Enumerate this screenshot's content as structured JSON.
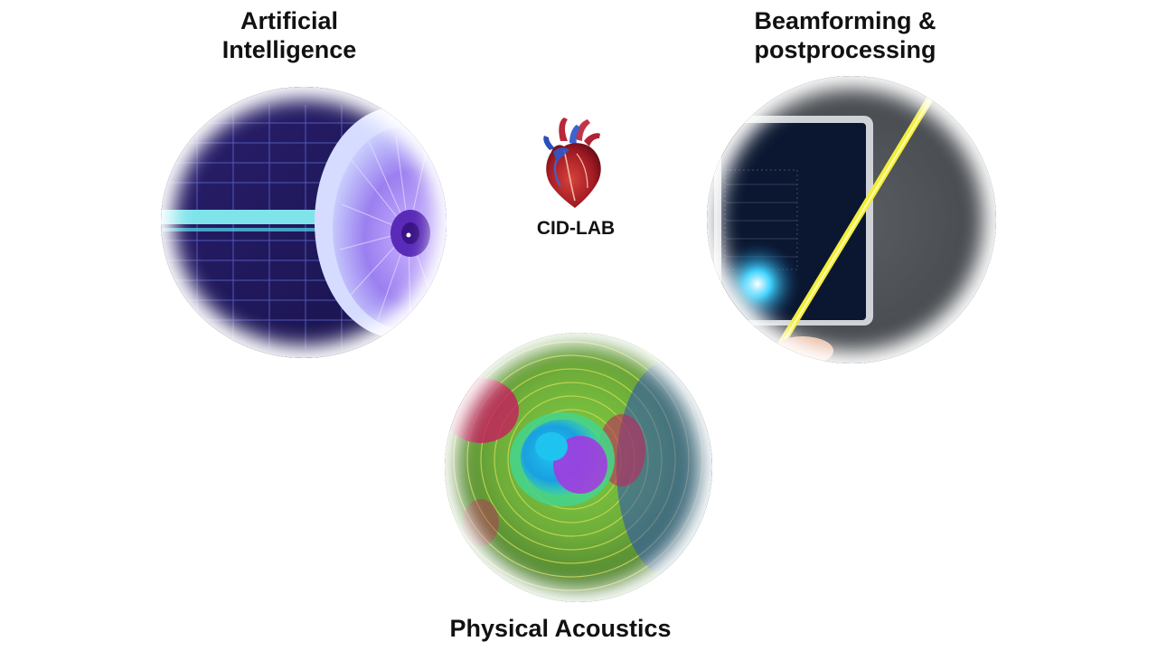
{
  "topics": {
    "ai": {
      "line1": "Artificial",
      "line2": "Intelligence"
    },
    "beamforming": {
      "line1": "Beamforming &",
      "line2": "postprocessing"
    },
    "acoustics": {
      "label": "Physical Acoustics"
    }
  },
  "lab": {
    "name": "CID-LAB",
    "logo_icon": "heart-icon"
  },
  "colors": {
    "ai_primary": "#3b2a8a",
    "ai_accent": "#9b7ff0",
    "ai_bar": "#7fe3ea",
    "beam_line": "#f3ee3a",
    "beam_glow": "#3fd3ff",
    "acoustics_green": "#6fae3a",
    "acoustics_magenta": "#c2255c",
    "acoustics_cyan": "#1fc3f0",
    "acoustics_purple": "#a23be0"
  }
}
